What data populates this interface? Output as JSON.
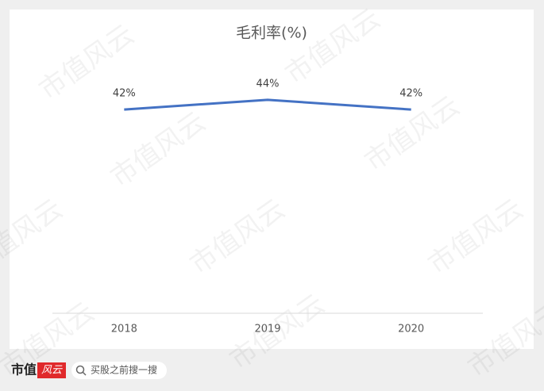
{
  "chart_data": {
    "type": "line",
    "title": "毛利率(%)",
    "categories": [
      "2018",
      "2019",
      "2020"
    ],
    "series": [
      {
        "name": "毛利率",
        "color": "#4472c4",
        "values": [
          42,
          44,
          42
        ],
        "value_labels": [
          "42%",
          "44%",
          "42%"
        ]
      }
    ],
    "ylim": [
      0,
      60
    ]
  },
  "footer": {
    "brand": "市值",
    "brand_mark": "风云",
    "search": "买股之前搜一搜"
  },
  "watermark": "市值风云"
}
